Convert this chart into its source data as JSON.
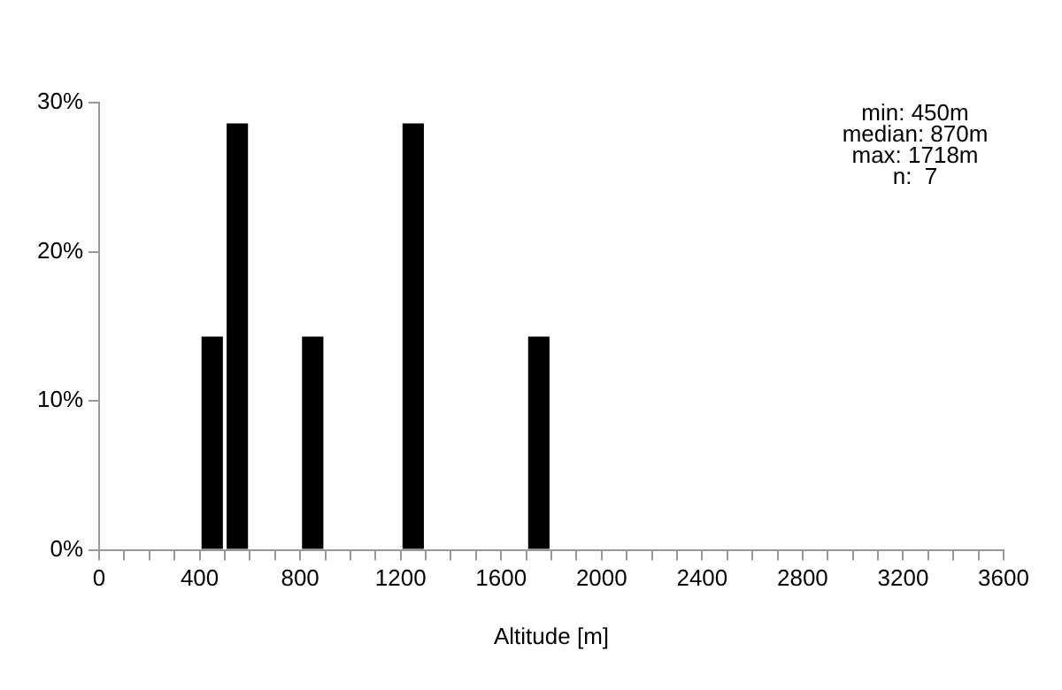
{
  "chart_data": {
    "type": "histogram",
    "xlabel": "Altitude [m]",
    "bins": [
      0,
      100,
      200,
      300,
      400,
      500,
      600,
      700,
      800,
      900,
      1000,
      1100,
      1200,
      1300,
      1400,
      1500,
      1600,
      1700,
      1800,
      1900,
      2000,
      2100,
      2200,
      2300,
      2400,
      2500,
      2600,
      2700,
      2800,
      2900,
      3000,
      3100,
      3200,
      3300,
      3400,
      3500,
      3600
    ],
    "values": [
      0,
      0,
      0,
      0,
      14.3,
      28.6,
      0,
      0,
      14.3,
      0,
      0,
      0,
      28.6,
      0,
      0,
      0,
      0,
      14.3,
      0,
      0,
      0,
      0,
      0,
      0,
      0,
      0,
      0,
      0,
      0,
      0,
      0,
      0,
      0,
      0,
      0,
      0
    ],
    "color": "#000000",
    "xlim": [
      0,
      3600
    ],
    "xticks": [
      0,
      {
        "value": 100,
        "label": null
      },
      {
        "value": 200,
        "label": null
      },
      {
        "value": 300,
        "label": null
      },
      400,
      {
        "value": 500,
        "label": null
      },
      {
        "value": 600,
        "label": null
      },
      {
        "value": 700,
        "label": null
      },
      800,
      {
        "value": 900,
        "label": null
      },
      {
        "value": 1000,
        "label": null
      },
      {
        "value": 1100,
        "label": null
      },
      1200,
      {
        "value": 1300,
        "label": null
      },
      {
        "value": 1400,
        "label": null
      },
      {
        "value": 1500,
        "label": null
      },
      1600,
      {
        "value": 1700,
        "label": null
      },
      {
        "value": 1800,
        "label": null
      },
      {
        "value": 1900,
        "label": null
      },
      2000,
      {
        "value": 2100,
        "label": null
      },
      {
        "value": 2200,
        "label": null
      },
      {
        "value": 2300,
        "label": null
      },
      2400,
      {
        "value": 2500,
        "label": null
      },
      {
        "value": 2600,
        "label": null
      },
      {
        "value": 2700,
        "label": null
      },
      2800,
      {
        "value": 2900,
        "label": null
      },
      {
        "value": 3000,
        "label": null
      },
      {
        "value": 3100,
        "label": null
      },
      3200,
      {
        "value": 3300,
        "label": null
      },
      {
        "value": 3400,
        "label": null
      },
      {
        "value": 3500,
        "label": null
      },
      3600
    ],
    "ylim": [
      0,
      30
    ],
    "yticks": [
      {
        "value": 0,
        "label": "0%"
      },
      {
        "value": 10,
        "label": "10%"
      },
      {
        "value": 20,
        "label": "20%"
      },
      {
        "value": 30,
        "label": "30%"
      }
    ],
    "grid": false,
    "legend": false,
    "annotations": [
      "min: 450m",
      "median: 870m",
      "max: 1718m",
      "n:  7"
    ]
  }
}
